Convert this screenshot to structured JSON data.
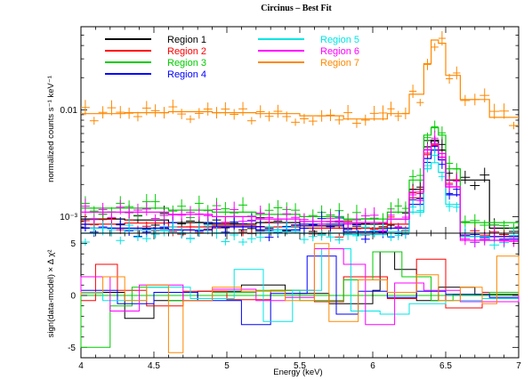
{
  "colors": {
    "Region 1": "#000000",
    "Region 2": "#ff0000",
    "Region 3": "#00cc00",
    "Region 4": "#0000ff",
    "Region 5": "#00e5e5",
    "Region 6": "#ff00ff",
    "Region 7": "#ff8800"
  },
  "chart_data": [
    {
      "type": "line",
      "panel": "top",
      "title": "Circinus – Best Fit",
      "xlabel": "",
      "ylabel": "normalized counts s⁻¹ keV⁻¹",
      "xlim": [
        4,
        7
      ],
      "ylim": [
        0.0007,
        0.06
      ],
      "yscale": "log",
      "ytick_labels": [
        {
          "value": 0.01,
          "label": "0.01"
        },
        {
          "value": 0.001,
          "label": "10⁻³"
        }
      ],
      "bin_edges": [
        4.0,
        4.3,
        4.6,
        4.9,
        5.2,
        5.5,
        5.8,
        6.1,
        6.25,
        6.35,
        6.4,
        6.45,
        6.5,
        6.6,
        6.8,
        7.0
      ],
      "series": [
        {
          "name": "Region 1",
          "model": [
            0.00095,
            0.00093,
            0.00088,
            0.00085,
            0.00088,
            0.00082,
            0.00085,
            0.00095,
            0.0018,
            0.0045,
            0.0052,
            0.0042,
            0.0022,
            0.0022,
            0.00078
          ]
        },
        {
          "name": "Region 2",
          "model": [
            0.00085,
            0.00087,
            0.0008,
            0.00082,
            0.0008,
            0.00078,
            0.00078,
            0.00085,
            0.0015,
            0.0038,
            0.0046,
            0.0036,
            0.0019,
            0.00065,
            0.00065
          ]
        },
        {
          "name": "Region 3",
          "model": [
            0.0012,
            0.0012,
            0.00115,
            0.0011,
            0.00105,
            0.001,
            0.00095,
            0.0011,
            0.0022,
            0.0058,
            0.0068,
            0.0058,
            0.0028,
            0.00088,
            0.00088
          ]
        },
        {
          "name": "Region 4",
          "model": [
            0.00078,
            0.00078,
            0.00075,
            0.0008,
            0.00075,
            0.00085,
            0.00072,
            0.00078,
            0.0013,
            0.0035,
            0.0042,
            0.0034,
            0.0016,
            0.00065,
            0.00065
          ]
        },
        {
          "name": "Region 5",
          "model": [
            0.0007,
            0.00075,
            0.0007,
            0.0007,
            0.00072,
            0.0007,
            0.00068,
            0.00072,
            0.0011,
            0.0028,
            0.0032,
            0.0026,
            0.0013,
            0.00065,
            0.0006
          ]
        },
        {
          "name": "Region 6",
          "model": [
            0.0011,
            0.0011,
            0.00105,
            0.001,
            0.00095,
            0.0009,
            0.00088,
            0.00095,
            0.0017,
            0.0042,
            0.0048,
            0.0039,
            0.0019,
            0.0006,
            0.0006
          ]
        },
        {
          "name": "Region 7",
          "model": [
            0.0092,
            0.0094,
            0.0096,
            0.0094,
            0.0092,
            0.0088,
            0.0082,
            0.0092,
            0.014,
            0.027,
            0.045,
            0.042,
            0.021,
            0.0125,
            0.0085
          ]
        }
      ]
    },
    {
      "type": "line",
      "panel": "bottom",
      "xlabel": "Energy (keV)",
      "ylabel": "sign(data-model) × Δ χ²",
      "xlim": [
        4,
        7
      ],
      "ylim": [
        -6,
        6
      ],
      "xticks": [
        4,
        4.5,
        5,
        5.5,
        6,
        6.5,
        7
      ],
      "yticks": [
        -5,
        0,
        5
      ],
      "series": [
        {
          "name": "Region 1",
          "edges": [
            4.0,
            4.3,
            4.5,
            4.8,
            5.1,
            5.4,
            5.7,
            6.0,
            6.05,
            6.15,
            6.3,
            6.45,
            6.7,
            7.0
          ],
          "residuals": [
            0.3,
            -2.2,
            -0.5,
            0.4,
            1.0,
            0.2,
            -0.8,
            0.5,
            4.2,
            2.5,
            -0.5,
            0.8,
            0.1
          ]
        },
        {
          "name": "Region 2",
          "edges": [
            4.0,
            4.1,
            4.25,
            4.45,
            4.7,
            5.0,
            5.3,
            5.6,
            5.8,
            6.1,
            6.3,
            6.5,
            6.75,
            7.0
          ],
          "residuals": [
            -0.5,
            3.0,
            0.5,
            -1.0,
            0.4,
            -0.4,
            0.5,
            -0.6,
            1.8,
            -0.3,
            3.5,
            -1.2,
            0.3
          ]
        },
        {
          "name": "Region 3",
          "edges": [
            4.0,
            4.2,
            4.35,
            4.6,
            4.9,
            5.2,
            5.5,
            5.8,
            6.0,
            6.2,
            6.4,
            6.55,
            6.8,
            7.0
          ],
          "residuals": [
            -5.0,
            -1.0,
            0.8,
            -0.5,
            0.3,
            0.5,
            -0.5,
            1.5,
            4.2,
            1.8,
            -0.5,
            0.1,
            0.3
          ]
        },
        {
          "name": "Region 4",
          "edges": [
            4.0,
            4.25,
            4.5,
            4.8,
            5.1,
            5.3,
            5.55,
            5.75,
            5.9,
            6.1,
            6.3,
            6.5,
            6.8,
            7.0
          ],
          "residuals": [
            0.5,
            -0.8,
            0.3,
            -0.5,
            -2.8,
            0.2,
            3.8,
            -1.8,
            0.4,
            -0.2,
            0.4,
            0.1,
            -0.2
          ]
        },
        {
          "name": "Region 5",
          "edges": [
            4.0,
            4.15,
            4.45,
            4.75,
            5.05,
            5.25,
            5.45,
            5.65,
            5.85,
            6.05,
            6.25,
            6.5,
            6.75,
            7.0
          ],
          "residuals": [
            0.2,
            -0.5,
            0.8,
            -0.3,
            2.5,
            -2.5,
            0.5,
            4.5,
            -1.5,
            -1.8,
            -0.8,
            -0.5,
            -0.3
          ]
        },
        {
          "name": "Region 6",
          "edges": [
            4.0,
            4.2,
            4.4,
            4.7,
            4.9,
            5.2,
            5.4,
            5.6,
            5.8,
            5.95,
            6.15,
            6.35,
            6.6,
            7.0
          ],
          "residuals": [
            1.8,
            -1.5,
            1.0,
            -0.5,
            0.6,
            -0.5,
            -0.2,
            4.5,
            3.0,
            -2.8,
            1.2,
            0.5,
            -0.6
          ]
        },
        {
          "name": "Region 7",
          "edges": [
            4.0,
            4.15,
            4.3,
            4.45,
            4.6,
            4.7,
            4.9,
            5.1,
            5.4,
            5.6,
            5.7,
            5.9,
            6.1,
            6.3,
            6.45,
            6.6,
            6.75,
            6.85,
            7.0
          ],
          "residuals": [
            0.3,
            1.8,
            -0.5,
            1.0,
            -5.5,
            -0.5,
            0.8,
            0.4,
            -0.5,
            5.0,
            -2.5,
            1.5,
            0.3,
            2.0,
            -0.5,
            0.8,
            -0.8,
            3.8
          ]
        }
      ]
    }
  ],
  "legend": {
    "columns": [
      [
        "Region 1",
        "Region 2",
        "Region 3",
        "Region 4"
      ],
      [
        "Region 5",
        "Region 6",
        "Region 7"
      ]
    ]
  }
}
